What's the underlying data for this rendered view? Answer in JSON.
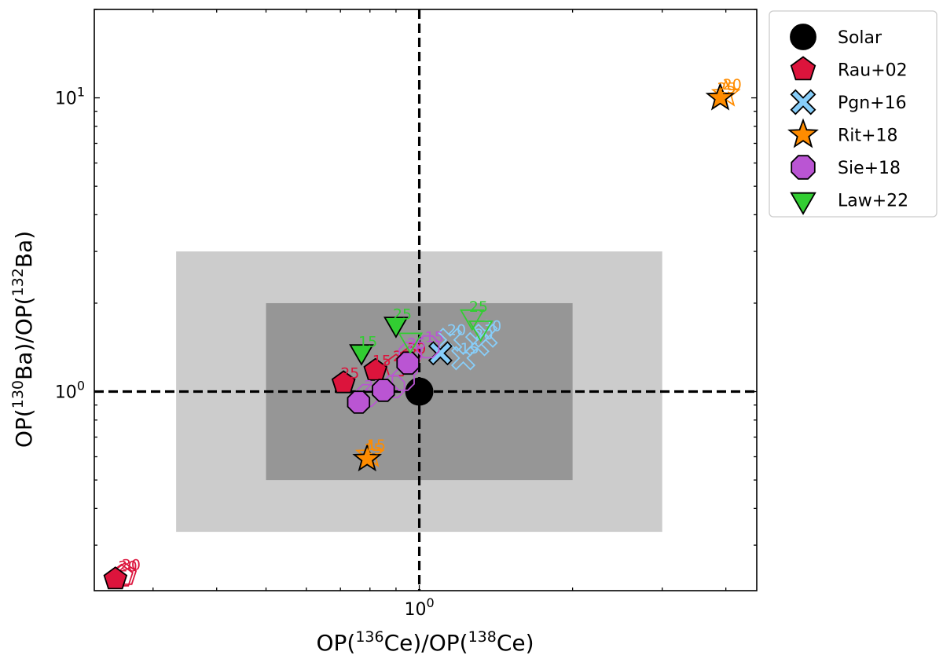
{
  "chart_data": {
    "type": "scatter",
    "title": "",
    "xlabel": {
      "pre": "OP(",
      "sup1": "136",
      "mid": "Ce)/OP(",
      "sup2": "138",
      "post": "Ce)"
    },
    "ylabel": {
      "pre": "OP(",
      "sup1": "130",
      "mid": "Ba)/OP(",
      "sup2": "132",
      "post": "Ba)"
    },
    "xscale": "log",
    "yscale": "log",
    "xlim": [
      0.23,
      4.6
    ],
    "ylim": [
      0.21,
      20
    ],
    "xticks": [
      {
        "value": 1,
        "base": "10",
        "exp": "0"
      }
    ],
    "yticks": [
      {
        "value": 1,
        "base": "10",
        "exp": "0"
      },
      {
        "value": 10,
        "base": "10",
        "exp": "1"
      }
    ],
    "reference_lines": {
      "x": 1,
      "y": 1,
      "style": "dashed",
      "color": "#000000"
    },
    "bands": [
      {
        "x": [
          0.333,
          3.0
        ],
        "y": [
          0.333,
          3.0
        ],
        "color": "#cccccc"
      },
      {
        "x": [
          0.5,
          2.0
        ],
        "y": [
          0.5,
          2.0
        ],
        "color": "#969696"
      }
    ],
    "legend_position": "outside-right",
    "series": [
      {
        "name": "Solar",
        "marker": "circle",
        "color": "#000000",
        "points": [
          {
            "x": 1.0,
            "y": 1.0,
            "filled": true
          }
        ]
      },
      {
        "name": "Rau+02",
        "marker": "pentagon",
        "color": "#dc143c",
        "points": [
          {
            "x": 0.253,
            "y": 0.23,
            "filled": true
          },
          {
            "x": 0.26,
            "y": 0.235,
            "filled": false,
            "label": "20"
          },
          {
            "x": 0.264,
            "y": 0.238,
            "filled": false,
            "label": "30"
          },
          {
            "x": 0.71,
            "y": 1.07,
            "filled": true,
            "label": "25"
          },
          {
            "x": 0.82,
            "y": 1.18,
            "filled": true,
            "label": "15"
          },
          {
            "x": 0.9,
            "y": 1.22,
            "filled": false,
            "label": "20"
          },
          {
            "x": 0.96,
            "y": 1.3,
            "filled": false,
            "label": "30"
          }
        ]
      },
      {
        "name": "Pgn+16",
        "marker": "x",
        "color": "#87cefa",
        "points": [
          {
            "x": 1.1,
            "y": 1.35,
            "filled": true
          },
          {
            "x": 1.15,
            "y": 1.5,
            "filled": false,
            "label": "20"
          },
          {
            "x": 1.22,
            "y": 1.3,
            "filled": false,
            "label": "15"
          },
          {
            "x": 1.3,
            "y": 1.45,
            "filled": false,
            "label": "20"
          },
          {
            "x": 1.35,
            "y": 1.55,
            "filled": false,
            "label": "30"
          }
        ]
      },
      {
        "name": "Rit+18",
        "marker": "star",
        "color": "#ff8c00",
        "points": [
          {
            "x": 3.9,
            "y": 10.0,
            "filled": true,
            "label": "25"
          },
          {
            "x": 4.0,
            "y": 10.3,
            "filled": false,
            "label": "20"
          },
          {
            "x": 0.79,
            "y": 0.59,
            "filled": true,
            "label": "15"
          },
          {
            "x": 0.8,
            "y": 0.61,
            "filled": false,
            "label": "15"
          }
        ]
      },
      {
        "name": "Sie+18",
        "marker": "octagon",
        "color": "#ba55d3",
        "points": [
          {
            "x": 0.76,
            "y": 0.92,
            "filled": true
          },
          {
            "x": 0.85,
            "y": 1.01,
            "filled": true
          },
          {
            "x": 0.95,
            "y": 1.25,
            "filled": true
          },
          {
            "x": 0.79,
            "y": 0.97,
            "filled": false,
            "label": "25"
          },
          {
            "x": 0.89,
            "y": 1.04,
            "filled": false
          },
          {
            "x": 0.93,
            "y": 1.1,
            "filled": false,
            "label": "20"
          },
          {
            "x": 0.96,
            "y": 1.35,
            "filled": false,
            "label": "25"
          },
          {
            "x": 1.04,
            "y": 1.42,
            "filled": false,
            "label": "15"
          }
        ]
      },
      {
        "name": "Law+22",
        "marker": "triangle-down",
        "color": "#32cd32",
        "points": [
          {
            "x": 0.77,
            "y": 1.37,
            "filled": true,
            "label": "15"
          },
          {
            "x": 0.9,
            "y": 1.7,
            "filled": true,
            "label": "25"
          },
          {
            "x": 0.96,
            "y": 1.5,
            "filled": false
          },
          {
            "x": 1.27,
            "y": 1.8,
            "filled": false,
            "label": "25"
          },
          {
            "x": 1.32,
            "y": 1.65,
            "filled": false
          }
        ]
      }
    ]
  }
}
